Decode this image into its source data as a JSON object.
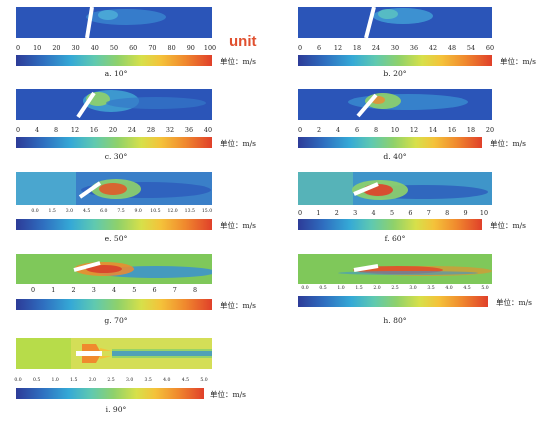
{
  "annotation": {
    "unit": "unit"
  },
  "panels": [
    {
      "caption": "a. 10°",
      "angle_deg": 10,
      "unit_label": "单位：m/s",
      "ticks": [
        "0",
        "10",
        "20",
        "30",
        "40",
        "50",
        "60",
        "70",
        "80",
        "90",
        "100"
      ]
    },
    {
      "caption": "b. 20°",
      "angle_deg": 20,
      "unit_label": "单位：m/s",
      "ticks": [
        "0",
        "6",
        "12",
        "18",
        "24",
        "30",
        "36",
        "42",
        "48",
        "54",
        "60"
      ]
    },
    {
      "caption": "c. 30°",
      "angle_deg": 30,
      "unit_label": "单位：m/s",
      "ticks": [
        "0",
        "4",
        "8",
        "12",
        "16",
        "20",
        "24",
        "28",
        "32",
        "36",
        "40"
      ]
    },
    {
      "caption": "d. 40°",
      "angle_deg": 40,
      "unit_label": "单位：m/s",
      "ticks": [
        "0",
        "2",
        "4",
        "6",
        "8",
        "10",
        "12",
        "14",
        "16",
        "18",
        "20"
      ]
    },
    {
      "caption": "e. 50°",
      "angle_deg": 50,
      "unit_label": "单位：m/s",
      "ticks": [
        "0.0",
        "1.5",
        "3.0",
        "4.5",
        "6.0",
        "7.5",
        "9.0",
        "10.5",
        "12.0",
        "13.5",
        "15.0"
      ]
    },
    {
      "caption": "f. 60°",
      "angle_deg": 60,
      "unit_label": "单位：m/s",
      "ticks": [
        "0",
        "1",
        "2",
        "3",
        "4",
        "5",
        "6",
        "7",
        "8",
        "9",
        "10"
      ]
    },
    {
      "caption": "g. 70°",
      "angle_deg": 70,
      "unit_label": "单位：m/s",
      "ticks": [
        "0",
        "1",
        "2",
        "3",
        "4",
        "5",
        "6",
        "7",
        "8"
      ]
    },
    {
      "caption": "h. 80°",
      "angle_deg": 80,
      "unit_label": "单位：m/s",
      "ticks": [
        "0.0",
        "0.5",
        "1.0",
        "1.5",
        "2.0",
        "2.5",
        "3.0",
        "3.5",
        "4.0",
        "4.5",
        "5.0"
      ]
    },
    {
      "caption": "i. 90°",
      "angle_deg": 90,
      "unit_label": "单位：m/s",
      "ticks": [
        "0.0",
        "0.5",
        "1.0",
        "1.5",
        "2.0",
        "2.5",
        "3.0",
        "3.5",
        "4.0",
        "4.5",
        "5.0"
      ]
    }
  ]
}
